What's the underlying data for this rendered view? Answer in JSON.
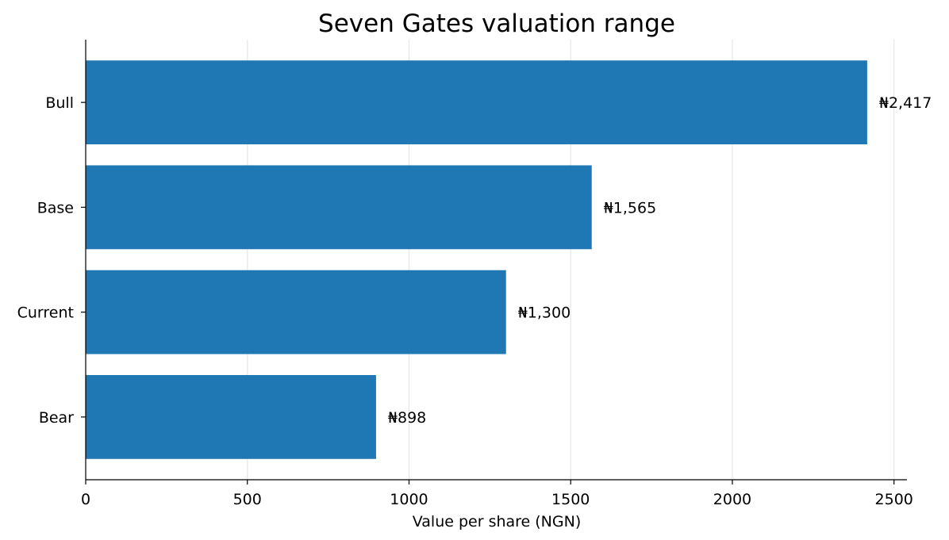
{
  "chart_data": {
    "type": "bar",
    "orientation": "horizontal",
    "title": "Seven Gates valuation range",
    "xlabel": "Value per share (NGN)",
    "ylabel": "",
    "categories": [
      "Bear",
      "Current",
      "Base",
      "Bull"
    ],
    "values": [
      898,
      1300,
      1565,
      2417
    ],
    "data_labels": [
      "₦898",
      "₦1,300",
      "₦1,565",
      "₦2,417"
    ],
    "xlim": [
      0,
      2540
    ],
    "xticks": [
      0,
      500,
      1000,
      1500,
      2000,
      2500
    ],
    "xtick_labels": [
      "0",
      "500",
      "1000",
      "1500",
      "2000",
      "2500"
    ],
    "grid": "x",
    "bar_color": "#1f77b4"
  }
}
